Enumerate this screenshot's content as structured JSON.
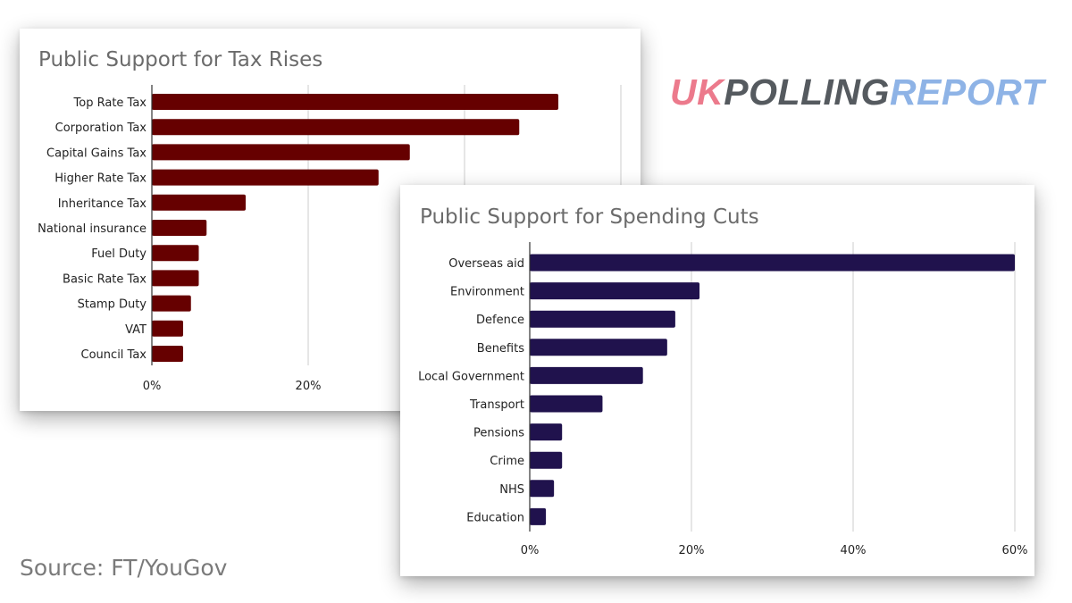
{
  "logo": {
    "part1": "UK",
    "part2": "POLLING",
    "part3": "REPORT"
  },
  "source": "Source: FT/YouGov",
  "colors": {
    "tax_bar": "#660000",
    "spend_bar": "#20124d",
    "grid": "#cccccc",
    "axis": "#333333"
  },
  "chart_data": [
    {
      "type": "bar",
      "orientation": "horizontal",
      "title": "Public Support for Tax Rises",
      "categories": [
        "Top Rate Tax",
        "Corporation Tax",
        "Capital Gains Tax",
        "Higher Rate Tax",
        "Inheritance Tax",
        "National insurance",
        "Fuel Duty",
        "Basic Rate Tax",
        "Stamp Duty",
        "VAT",
        "Council Tax"
      ],
      "values": [
        52,
        47,
        33,
        29,
        12,
        7,
        6,
        6,
        5,
        4,
        4
      ],
      "xlim": [
        0,
        60
      ],
      "ticks": [
        "0%",
        "20%"
      ],
      "grid": true,
      "color": "#660000"
    },
    {
      "type": "bar",
      "orientation": "horizontal",
      "title": "Public Support for Spending Cuts",
      "categories": [
        "Overseas aid",
        "Environment",
        "Defence",
        "Benefits",
        "Local Government",
        "Transport",
        "Pensions",
        "Crime",
        "NHS",
        "Education"
      ],
      "values": [
        60,
        21,
        18,
        17,
        14,
        9,
        4,
        4,
        3,
        2
      ],
      "xlim": [
        0,
        60
      ],
      "ticks": [
        "0%",
        "20%",
        "40%",
        "60%"
      ],
      "grid": true,
      "color": "#20124d"
    }
  ]
}
